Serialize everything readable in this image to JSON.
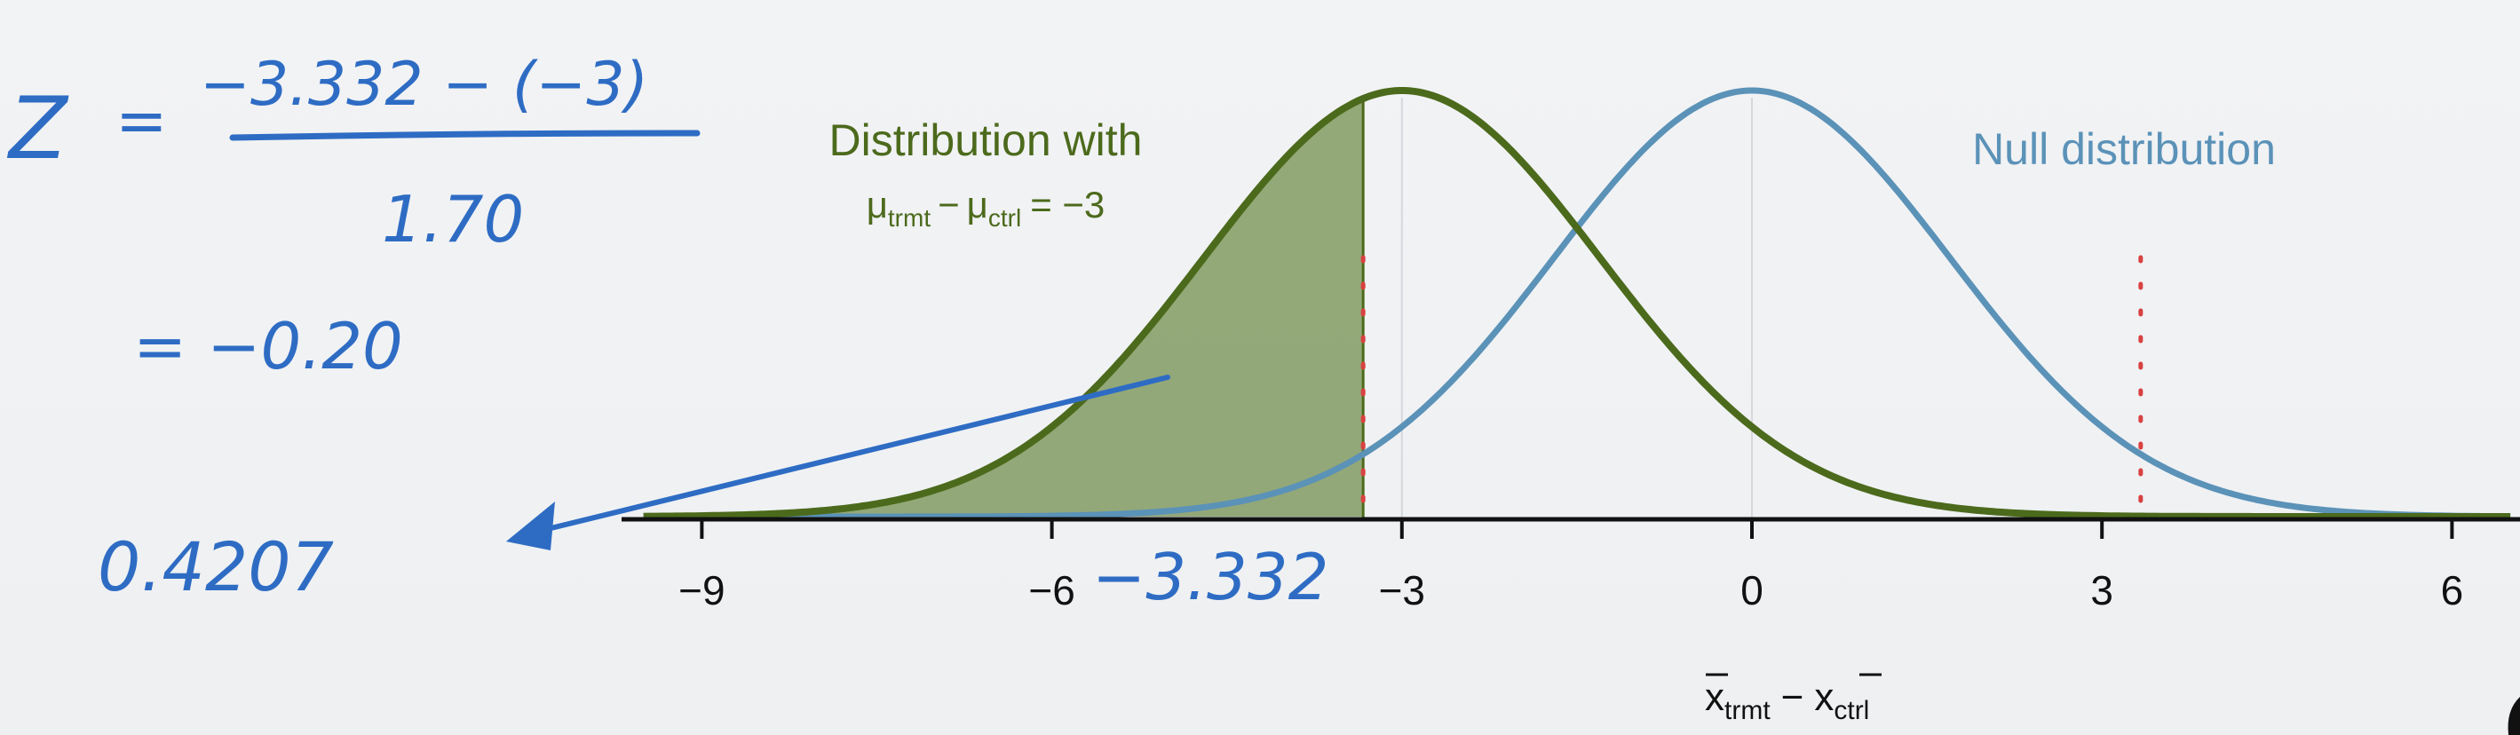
{
  "chart_data": {
    "type": "line",
    "x_range": [
      -9.5,
      6.5
    ],
    "x_ticks": [
      -9,
      -6,
      -3,
      0,
      3,
      6
    ],
    "x_tick_labels": [
      "−9",
      "−6",
      "−3",
      "0",
      "3",
      "6"
    ],
    "xlabel": {
      "main_left": "x",
      "sub_left": "trmt",
      "dash": "−",
      "main_right": "x",
      "sub_right": "ctrl"
    },
    "series": [
      {
        "name_line1": "Distribution with",
        "name_line2": {
          "mu1": "μ",
          "sub1": "trmt",
          "mu2": "μ",
          "sub2": "ctrl",
          "rest": "= −3"
        },
        "mean": -3,
        "sd": 1.7,
        "color": "#4c6a1c"
      },
      {
        "name": "Null distribution",
        "mean": 0,
        "sd": 1.7,
        "color": "#5b92b8"
      }
    ],
    "shaded_region": {
      "from": -9.5,
      "to": -3.332,
      "color": "#6f8c48",
      "opacity": 0.72
    },
    "cutoffs": [
      -3.332,
      3.332
    ],
    "cutoff_color": "#d94141"
  },
  "annotations": {
    "z_symbol": "Z",
    "eq": "=",
    "numerator": "−3.332 − (−3)",
    "denominator": "1.70",
    "result": "= −0.20",
    "probability": "0.4207",
    "cutoff_label": "−3.332"
  },
  "colors": {
    "ink": "#2e6cc4",
    "axis": "#111111"
  }
}
